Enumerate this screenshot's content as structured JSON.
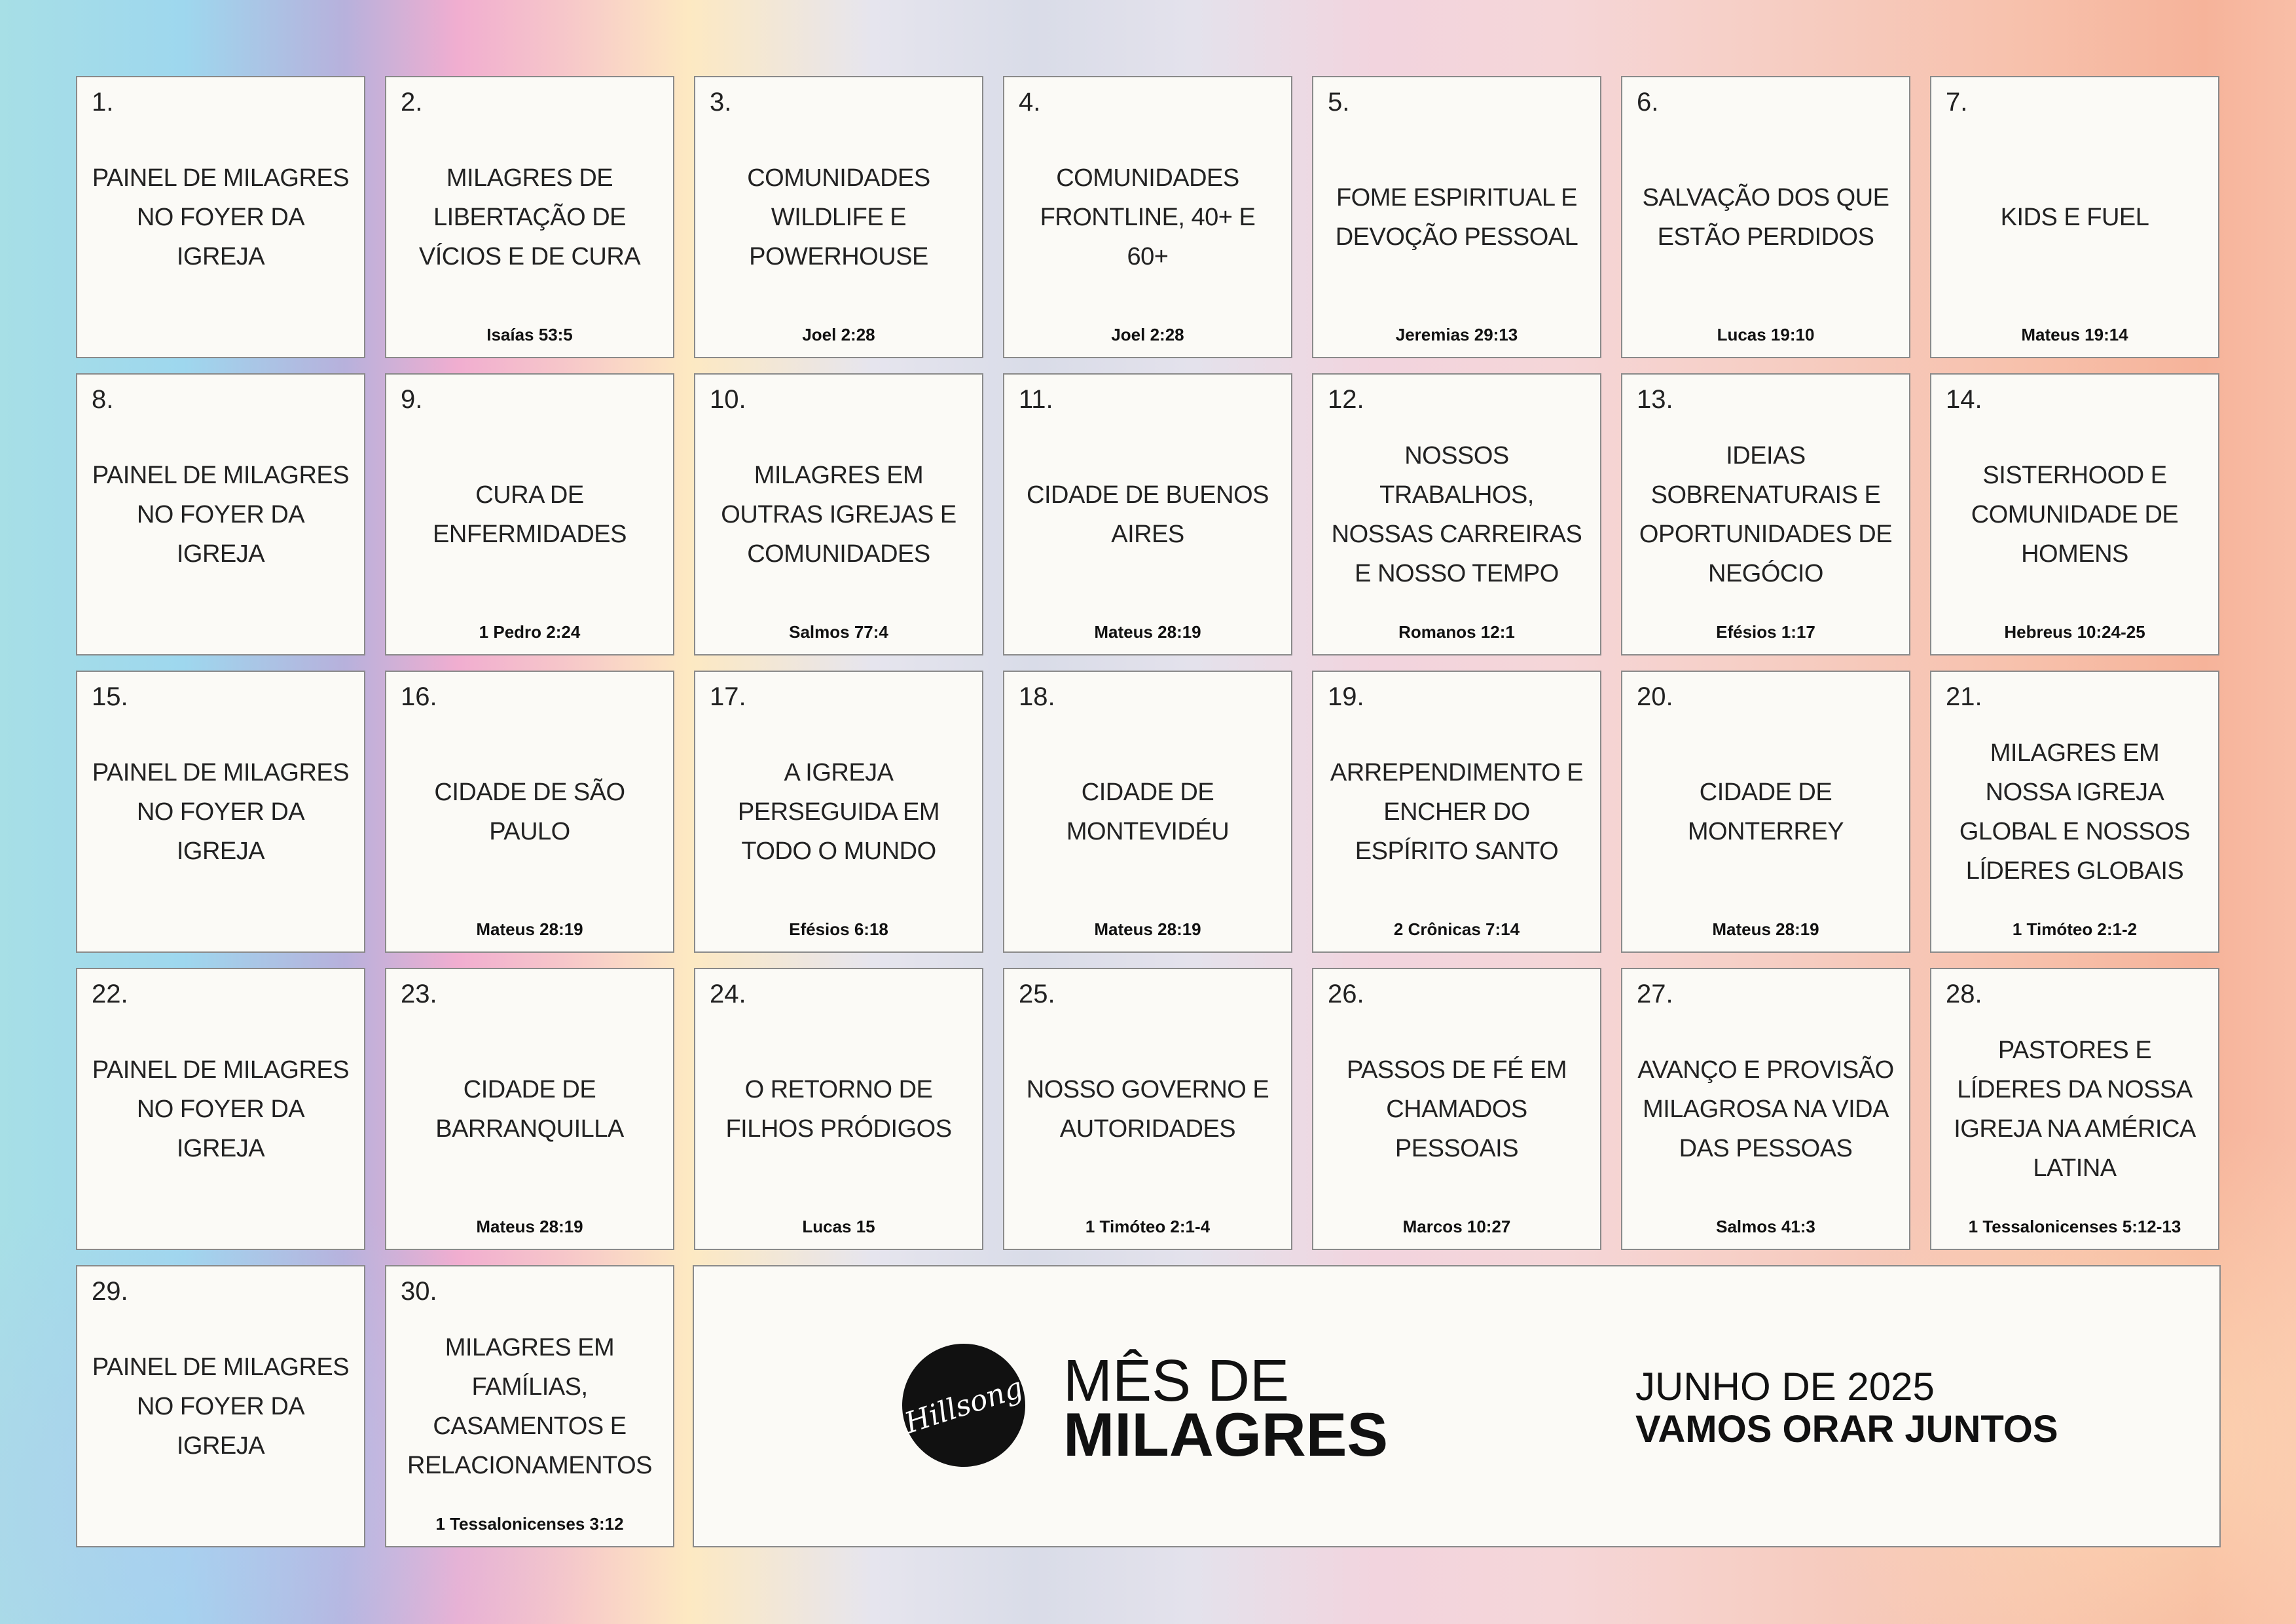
{
  "days": [
    {
      "number": "1.",
      "title": "PAINEL DE MILAGRES NO FOYER DA IGREJA",
      "verse": ""
    },
    {
      "number": "2.",
      "title": "MILAGRES DE LIBERTAÇÃO DE VÍCIOS E DE CURA",
      "verse": "Isaías 53:5"
    },
    {
      "number": "3.",
      "title": "COMUNIDADES WILDLIFE E POWERHOUSE",
      "verse": "Joel 2:28"
    },
    {
      "number": "4.",
      "title": "COMUNIDADES FRONTLINE, 40+ E 60+",
      "verse": "Joel 2:28"
    },
    {
      "number": "5.",
      "title": "FOME ESPIRITUAL E DEVOÇÃO PESSOAL",
      "verse": "Jeremias 29:13"
    },
    {
      "number": "6.",
      "title": "SALVAÇÃO DOS QUE ESTÃO PERDIDOS",
      "verse": "Lucas 19:10"
    },
    {
      "number": "7.",
      "title": "KIDS E FUEL",
      "verse": "Mateus 19:14"
    },
    {
      "number": "8.",
      "title": "PAINEL DE MILAGRES NO FOYER DA IGREJA",
      "verse": ""
    },
    {
      "number": "9.",
      "title": "CURA DE ENFERMIDADES",
      "verse": "1 Pedro 2:24"
    },
    {
      "number": "10.",
      "title": "MILAGRES EM OUTRAS IGREJAS E COMUNIDADES",
      "verse": "Salmos 77:4"
    },
    {
      "number": "11.",
      "title": "CIDADE DE BUENOS AIRES",
      "verse": "Mateus 28:19"
    },
    {
      "number": "12.",
      "title": "NOSSOS TRABALHOS, NOSSAS CARREIRAS E NOSSO TEMPO",
      "verse": "Romanos 12:1"
    },
    {
      "number": "13.",
      "title": "IDEIAS SOBRENATURAIS E OPORTUNIDADES DE NEGÓCIO",
      "verse": "Efésios 1:17"
    },
    {
      "number": "14.",
      "title": "SISTERHOOD E COMUNIDADE DE HOMENS",
      "verse": "Hebreus 10:24-25"
    },
    {
      "number": "15.",
      "title": "PAINEL DE MILAGRES NO FOYER DA IGREJA",
      "verse": ""
    },
    {
      "number": "16.",
      "title": "CIDADE DE SÃO PAULO",
      "verse": "Mateus 28:19"
    },
    {
      "number": "17.",
      "title": "A IGREJA PERSEGUIDA EM TODO O MUNDO",
      "verse": "Efésios 6:18"
    },
    {
      "number": "18.",
      "title": "CIDADE DE MONTEVIDÉU",
      "verse": "Mateus 28:19"
    },
    {
      "number": "19.",
      "title": "ARREPENDIMENTO E ENCHER DO ESPÍRITO SANTO",
      "verse": "2 Crônicas 7:14"
    },
    {
      "number": "20.",
      "title": "CIDADE DE MONTERREY",
      "verse": "Mateus 28:19"
    },
    {
      "number": "21.",
      "title": "MILAGRES EM NOSSA IGREJA GLOBAL E NOSSOS LÍDERES GLOBAIS",
      "verse": "1 Timóteo 2:1-2"
    },
    {
      "number": "22.",
      "title": "PAINEL DE MILAGRES NO FOYER DA IGREJA",
      "verse": ""
    },
    {
      "number": "23.",
      "title": "CIDADE DE BARRANQUILLA",
      "verse": "Mateus 28:19"
    },
    {
      "number": "24.",
      "title": "O RETORNO DE FILHOS PRÓDIGOS",
      "verse": "Lucas 15"
    },
    {
      "number": "25.",
      "title": "NOSSO GOVERNO E AUTORIDADES",
      "verse": "1 Timóteo 2:1-4"
    },
    {
      "number": "26.",
      "title": "PASSOS DE FÉ EM CHAMADOS PESSOAIS",
      "verse": "Marcos 10:27"
    },
    {
      "number": "27.",
      "title": "AVANÇO E PROVISÃO MILAGROSA NA VIDA DAS PESSOAS",
      "verse": "Salmos 41:3"
    },
    {
      "number": "28.",
      "title": "PASTORES E LÍDERES DA NOSSA IGREJA NA AMÉRICA LATINA",
      "verse": "1 Tessalonicenses 5:12-13"
    },
    {
      "number": "29.",
      "title": "PAINEL DE MILAGRES NO FOYER DA IGREJA",
      "verse": ""
    },
    {
      "number": "30.",
      "title": "MILAGRES EM FAMÍLIAS, CASAMENTOS E RELACIONAMENTOS",
      "verse": "1 Tessalonicenses 3:12"
    }
  ],
  "banner": {
    "logo_text": "Hillsong",
    "title_line1": "MÊS DE",
    "title_line2": "MILAGRES",
    "date": "JUNHO DE 2025",
    "tagline": "VAMOS ORAR JUNTOS"
  }
}
